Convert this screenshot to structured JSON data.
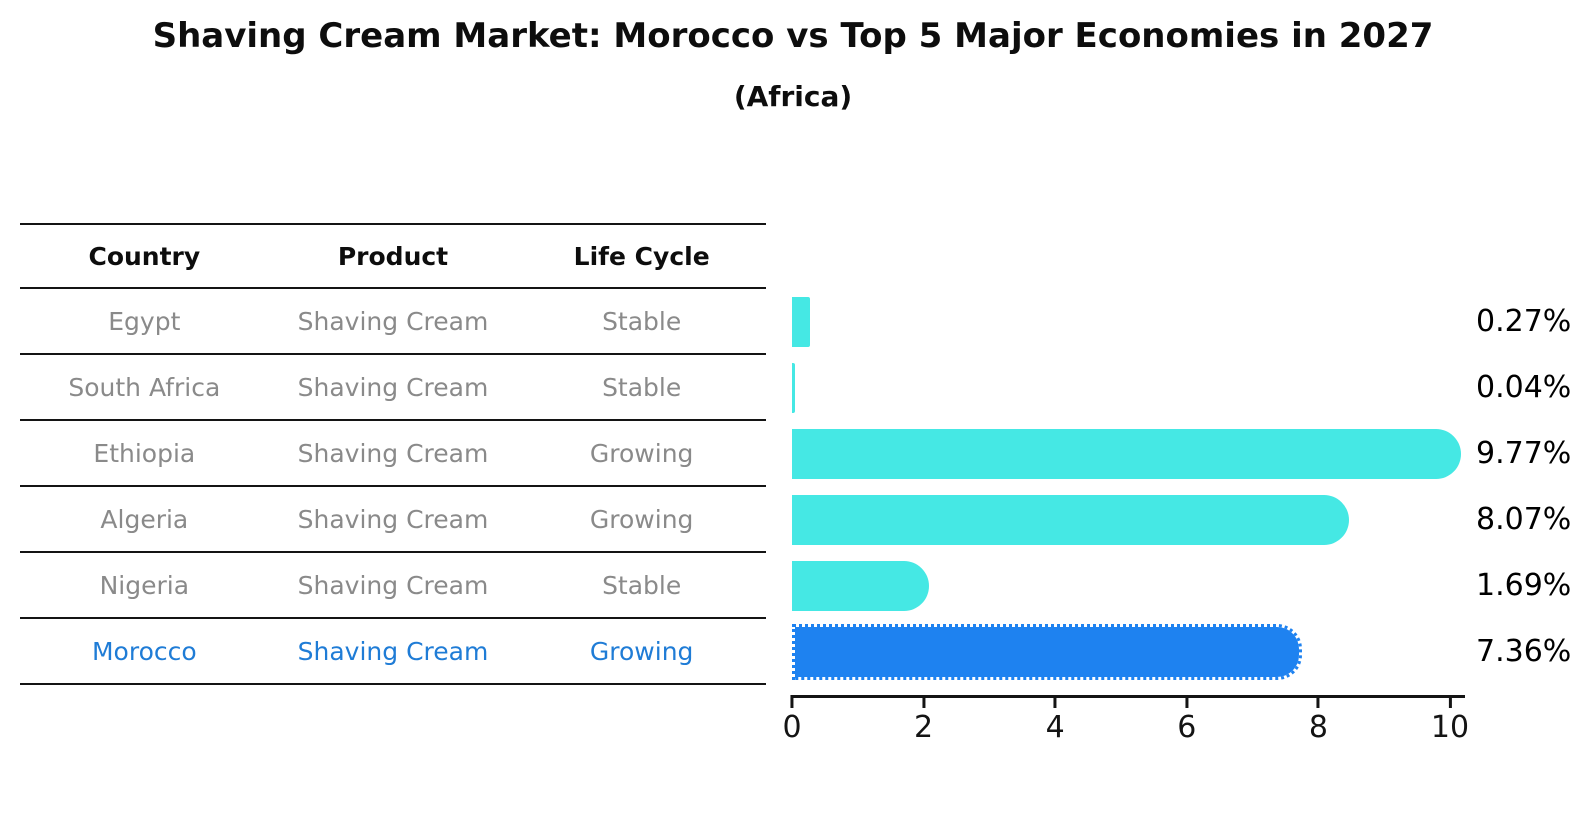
{
  "title": "Shaving Cream Market: Morocco vs Top 5 Major Economies in 2027",
  "subtitle": "(Africa)",
  "table": {
    "headers": [
      "Country",
      "Product",
      "Life Cycle"
    ],
    "rows": [
      {
        "country": "Egypt",
        "product": "Shaving Cream",
        "life_cycle": "Stable",
        "highlight": false
      },
      {
        "country": "South Africa",
        "product": "Shaving Cream",
        "life_cycle": "Stable",
        "highlight": false
      },
      {
        "country": "Ethiopia",
        "product": "Shaving Cream",
        "life_cycle": "Growing",
        "highlight": false
      },
      {
        "country": "Algeria",
        "product": "Shaving Cream",
        "life_cycle": "Growing",
        "highlight": false
      },
      {
        "country": "Nigeria",
        "product": "Shaving Cream",
        "life_cycle": "Stable",
        "highlight": false
      },
      {
        "country": "Morocco",
        "product": "Shaving Cream",
        "life_cycle": "Growing",
        "highlight": true
      }
    ]
  },
  "chart_data": {
    "type": "bar",
    "orientation": "horizontal",
    "title": "Shaving Cream Market: Morocco vs Top 5 Major Economies in 2027",
    "subtitle": "(Africa)",
    "categories": [
      "Egypt",
      "South Africa",
      "Ethiopia",
      "Algeria",
      "Nigeria",
      "Morocco"
    ],
    "values": [
      0.27,
      0.04,
      9.77,
      8.07,
      1.69,
      7.36
    ],
    "value_labels": [
      "0.27%",
      "0.04%",
      "9.77%",
      "8.07%",
      "1.69%",
      "7.36%"
    ],
    "xlim": [
      0,
      10
    ],
    "xticks": [
      0,
      2,
      4,
      6,
      8,
      10
    ],
    "grid": false,
    "legend": "none",
    "bar_color": "#45E8E4",
    "highlight_color": "#1E82F0",
    "highlight_index": 5,
    "highlight_category": "Morocco"
  },
  "colors": {
    "background": "#FFFFFF",
    "table_line": "#141414",
    "header_text": "#0D0D0D",
    "row_text": "#8A8A8A",
    "highlight_text": "#1F7CD6",
    "axis_text": "#141414",
    "value_label_text": "#000000"
  }
}
